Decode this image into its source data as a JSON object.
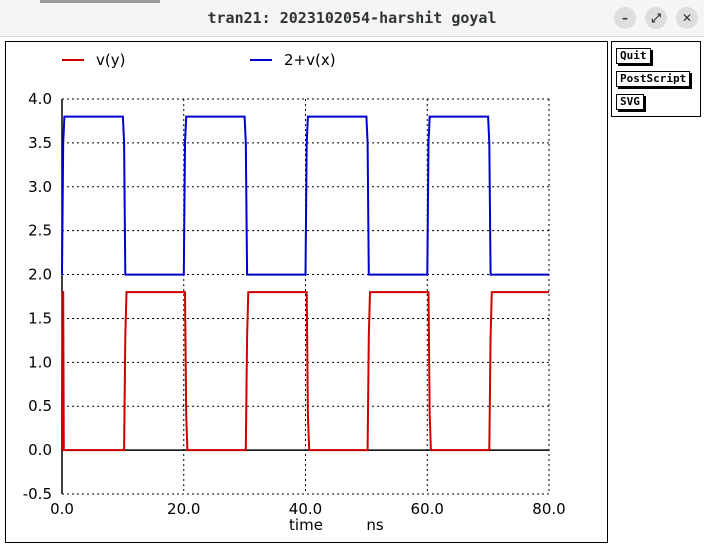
{
  "window": {
    "title": "tran21: 2023102054-harshit goyal"
  },
  "window_controls": {
    "minimize": "–",
    "maximize": "⤢",
    "close": "✕"
  },
  "buttons": {
    "quit": "Quit",
    "postscript": "PostScript",
    "svg": "SVG"
  },
  "colors": {
    "vy": "#cc0000",
    "vx": "#0000cc",
    "grid": "#000000"
  },
  "chart_data": {
    "type": "line",
    "xlabel": "time",
    "xunit": "ns",
    "xlim": [
      0,
      80
    ],
    "ylim": [
      -0.5,
      4.0
    ],
    "x_ticks": [
      "0.0",
      "20.0",
      "40.0",
      "60.0",
      "80.0"
    ],
    "y_ticks": [
      "4.0",
      "3.5",
      "3.0",
      "2.5",
      "2.0",
      "1.5",
      "1.0",
      "0.5",
      "0.0",
      "-0.5"
    ],
    "grid": true,
    "legend_position": "top",
    "series": [
      {
        "name": "v(y)",
        "x": [
          0,
          0.1,
          0.2,
          0.3,
          0.4,
          10.2,
          10.4,
          10.6,
          20.2,
          20.4,
          20.6,
          30.2,
          30.4,
          30.6,
          40.2,
          40.4,
          40.6,
          50.2,
          50.4,
          50.6,
          60.2,
          60.4,
          60.6,
          70.2,
          70.4,
          70.6,
          80
        ],
        "y": [
          0,
          1.8,
          1.8,
          0,
          0,
          0,
          1.3,
          1.8,
          1.8,
          0.4,
          0,
          0,
          1.3,
          1.8,
          1.8,
          0.4,
          0,
          0,
          1.3,
          1.8,
          1.8,
          0.4,
          0,
          0,
          1.3,
          1.8,
          1.8
        ]
      },
      {
        "name": "2+v(x)",
        "x": [
          0,
          0.2,
          0.4,
          10.0,
          10.2,
          10.4,
          20.0,
          20.2,
          20.4,
          30.0,
          30.2,
          30.4,
          40.0,
          40.2,
          40.4,
          50.0,
          50.2,
          50.4,
          60.0,
          60.2,
          60.4,
          70.0,
          70.2,
          70.4,
          80
        ],
        "y": [
          2.0,
          3.5,
          3.8,
          3.8,
          3.5,
          2.0,
          2.0,
          3.5,
          3.8,
          3.8,
          3.5,
          2.0,
          2.0,
          3.5,
          3.8,
          3.8,
          3.5,
          2.0,
          2.0,
          3.5,
          3.8,
          3.8,
          3.5,
          2.0,
          2.0
        ]
      }
    ]
  }
}
